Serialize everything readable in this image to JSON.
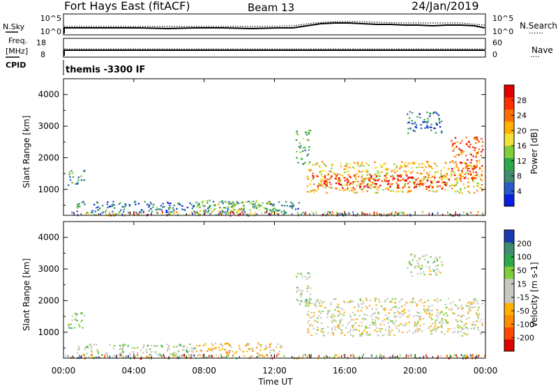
{
  "header": {
    "radar": "Fort Hays East (fitACF)",
    "beam": "Beam 13",
    "date": "24/Jan/2019"
  },
  "left_labels": {
    "nsky": "N.Sky",
    "freq_line1": "Freq.",
    "freq_line2": "[MHz]",
    "cpid": "CPID"
  },
  "right_labels": {
    "nsearch": "N.Search",
    "nave": "Nave",
    "dots": "......",
    "dots_short": "...."
  },
  "cpid_text": "themis -3300 IF",
  "time_axis": {
    "label": "Time UT",
    "ticks": [
      "00:00",
      "04:00",
      "08:00",
      "12:00",
      "16:00",
      "20:00",
      "00:00"
    ]
  },
  "noise_panel": {
    "left_ticks": [
      "10^5",
      "10^0"
    ],
    "right_ticks": [
      "10^5",
      "10^0"
    ]
  },
  "freq_panel": {
    "left_ticks": [
      "18",
      "8"
    ],
    "right_ticks": [
      "60",
      "0"
    ]
  },
  "power_panel": {
    "ylabel": "Slant Range [km]",
    "yticks": [
      "4000",
      "3000",
      "2000",
      "1000"
    ],
    "colorbar_label": "Power [dB]",
    "colorbar_ticks": [
      "28",
      "24",
      "20",
      "16",
      "12",
      "8",
      "4"
    ]
  },
  "velocity_panel": {
    "ylabel": "Slant Range [km]",
    "yticks": [
      "4000",
      "3000",
      "2000",
      "1000"
    ],
    "colorbar_label": "Velocity [m s-1]",
    "colorbar_ticks": [
      "200",
      "100",
      "50",
      "15",
      "-15",
      "-50",
      "-100",
      "-200"
    ]
  },
  "chart_data": [
    {
      "type": "line",
      "panel": "noise",
      "x_range_hours": [
        0,
        24
      ],
      "series": [
        {
          "name": "N.Sky",
          "style": "solid",
          "color": "#000000"
        },
        {
          "name": "N.Search",
          "style": "dotted",
          "color": "#000000"
        }
      ]
    },
    {
      "type": "line",
      "panel": "frequency",
      "ylim": [
        8,
        18
      ],
      "y2lim": [
        0,
        60
      ],
      "series": [
        {
          "name": "Freq.",
          "style": "solid",
          "color": "#000000"
        },
        {
          "name": "Nave",
          "style": "dotted",
          "color": "#000000"
        }
      ]
    },
    {
      "type": "heatmap",
      "panel": "power",
      "x_range_hours": [
        0,
        24
      ],
      "ylim_km": [
        180,
        4500
      ],
      "clim": [
        0,
        30
      ],
      "units": "dB",
      "colorscale": [
        "#0a1de0",
        "#2a58c8",
        "#3f8c6e",
        "#2da84a",
        "#7ecf3a",
        "#f0e23a",
        "#ffb000",
        "#ff7000",
        "#ff3000",
        "#e00000"
      ],
      "regions": [
        {
          "t0": 0.2,
          "t1": 1.2,
          "r0": 1150,
          "r1": 1650,
          "level": 9
        },
        {
          "t0": 0.7,
          "t1": 13.5,
          "r0": 280,
          "r1": 650,
          "level": 7
        },
        {
          "t0": 7.5,
          "t1": 12.0,
          "r0": 280,
          "r1": 680,
          "level": 14
        },
        {
          "t0": 13.2,
          "t1": 14.0,
          "r0": 1800,
          "r1": 2900,
          "level": 10
        },
        {
          "t0": 13.8,
          "t1": 23.8,
          "r0": 900,
          "r1": 1900,
          "level": 18
        },
        {
          "t0": 14.0,
          "t1": 22.0,
          "r0": 1050,
          "r1": 1500,
          "level": 27
        },
        {
          "t0": 22.0,
          "t1": 23.8,
          "r0": 1300,
          "r1": 2700,
          "level": 24
        },
        {
          "t0": 19.5,
          "t1": 21.5,
          "r0": 2800,
          "r1": 3500,
          "level": 6
        }
      ]
    },
    {
      "type": "heatmap",
      "panel": "velocity",
      "x_range_hours": [
        0,
        24
      ],
      "ylim_km": [
        180,
        4500
      ],
      "clim": [
        -250,
        250
      ],
      "units": "m/s",
      "colorscale": [
        "#e00000",
        "#ff4a00",
        "#ff8c00",
        "#ffb000",
        "#c8c8c0",
        "#c8c8c0",
        "#7ecf3a",
        "#2da84a",
        "#3f8c6e",
        "#1a3ab0"
      ],
      "regions": [
        {
          "t0": 0.2,
          "t1": 1.2,
          "r0": 1150,
          "r1": 1650,
          "level": 60
        },
        {
          "t0": 0.7,
          "t1": 7.5,
          "r0": 280,
          "r1": 650,
          "level": 40
        },
        {
          "t0": 7.5,
          "t1": 12.5,
          "r0": 250,
          "r1": 680,
          "level": -60
        },
        {
          "t0": 13.2,
          "t1": 14.0,
          "r0": 1800,
          "r1": 2900,
          "level": 40
        },
        {
          "t0": 13.8,
          "t1": 23.8,
          "r0": 900,
          "r1": 2100,
          "level": 0
        },
        {
          "t0": 19.5,
          "t1": 21.5,
          "r0": 2800,
          "r1": 3500,
          "level": 30
        }
      ]
    }
  ]
}
